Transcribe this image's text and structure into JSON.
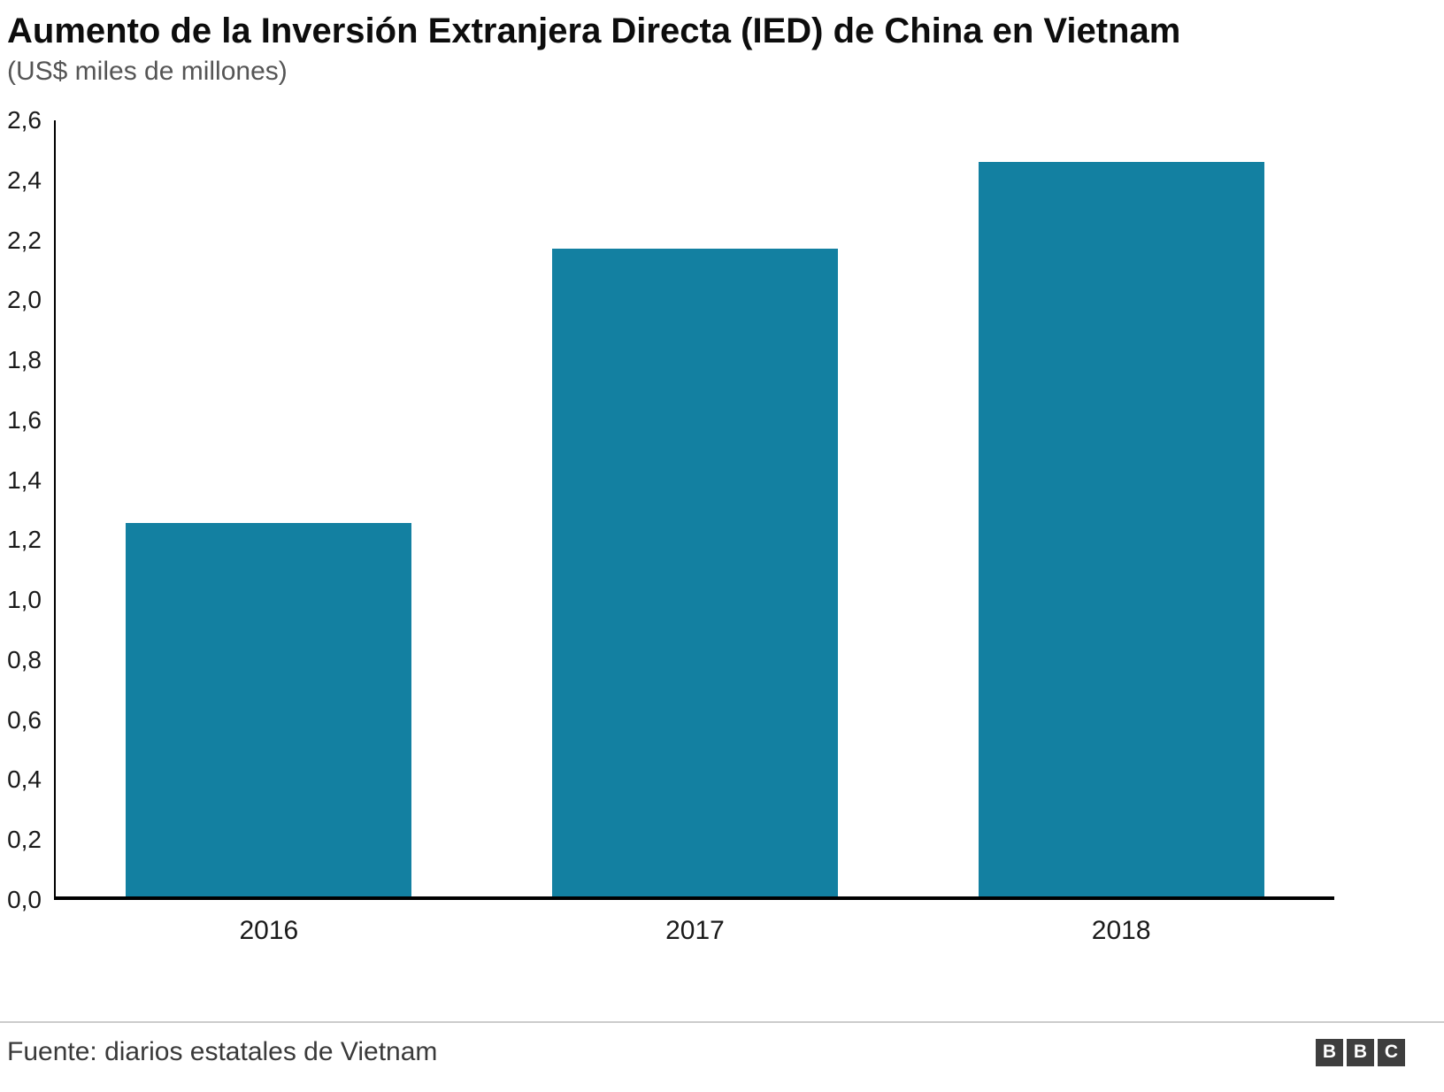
{
  "chart_data": {
    "type": "bar",
    "title": "Aumento de la Inversión Extranjera Directa (IED) de China en Vietnam",
    "subtitle": "(US$ miles de millones)",
    "categories": [
      "2016",
      "2017",
      "2018"
    ],
    "values": [
      1.25,
      2.17,
      2.46
    ],
    "ylim": [
      0,
      2.6
    ],
    "ytick_step": 0.2,
    "ytick_labels": [
      "0,0",
      "0,2",
      "0,4",
      "0,6",
      "0,8",
      "1,0",
      "1,2",
      "1,4",
      "1,6",
      "1,8",
      "2,0",
      "2,2",
      "2,4",
      "2,6"
    ],
    "bar_color": "#1380A1",
    "grid": false,
    "legend_position": "none",
    "xlabel": "",
    "ylabel": ""
  },
  "footer": {
    "source": "Fuente: diarios estatales de Vietnam",
    "logo_letters": [
      "B",
      "B",
      "C"
    ]
  }
}
